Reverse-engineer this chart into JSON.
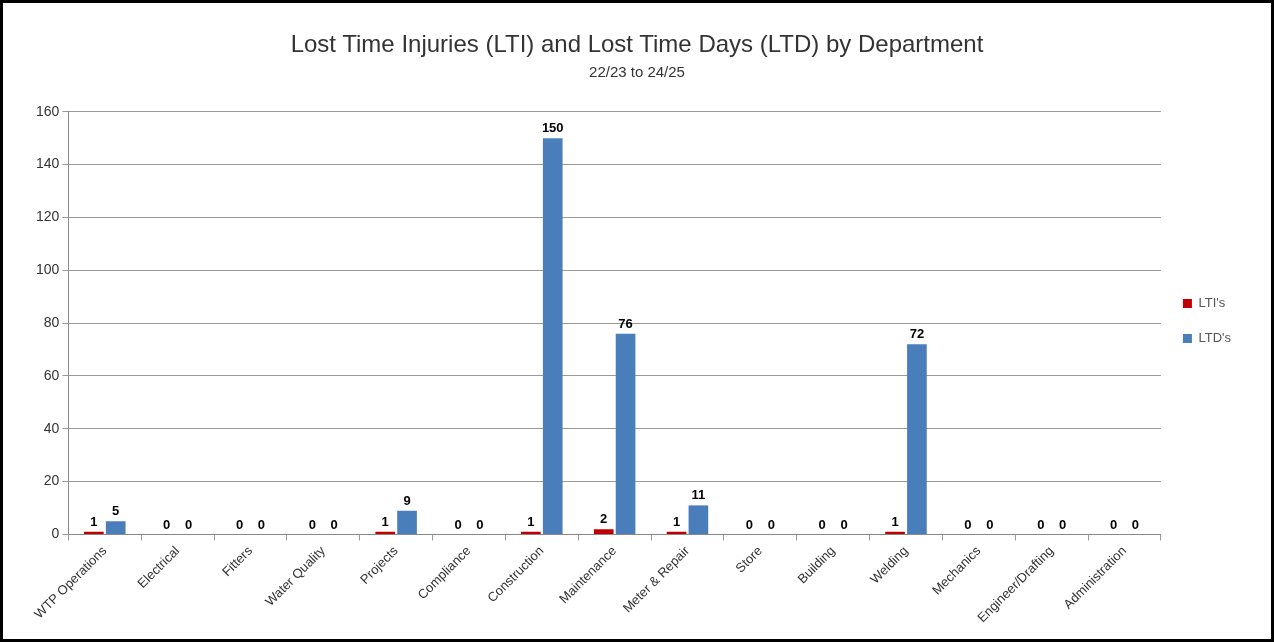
{
  "chart_data": {
    "type": "bar",
    "title": "Lost Time Injuries (LTI) and Lost Time Days (LTD) by Department",
    "subtitle": "22/23 to 24/25",
    "categories": [
      "WTP Operations",
      "Electrical",
      "Fitters",
      "Water Quality",
      "Projects",
      "Compliance",
      "Construction",
      "Maintenance",
      "Meter & Repair",
      "Store",
      "Building",
      "Welding",
      "Mechanics",
      "Engineer/Drafting",
      "Administration"
    ],
    "series": [
      {
        "name": "LTI's",
        "color": "#c00000",
        "values": [
          1,
          0,
          0,
          0,
          1,
          0,
          1,
          2,
          1,
          0,
          0,
          1,
          0,
          0,
          0
        ]
      },
      {
        "name": "LTD's",
        "color": "#4a7ebb",
        "values": [
          5,
          0,
          0,
          0,
          9,
          0,
          150,
          76,
          11,
          0,
          0,
          72,
          0,
          0,
          0
        ]
      }
    ],
    "ylim": [
      0,
      160
    ],
    "yticks": [
      0,
      20,
      40,
      60,
      80,
      100,
      120,
      140,
      160
    ],
    "grid": "y",
    "legend": "right",
    "data_labels": true
  }
}
